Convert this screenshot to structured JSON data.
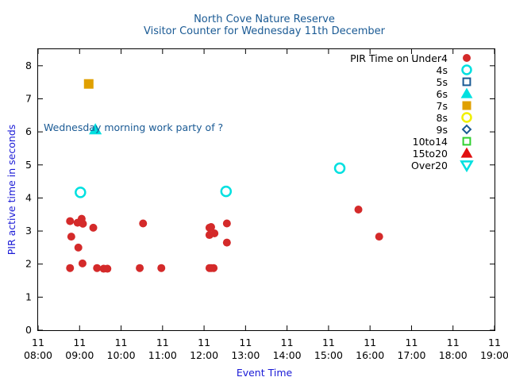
{
  "chart_data": {
    "type": "scatter",
    "title": "North Cove Nature Reserve",
    "subtitle": "Visitor Counter for Wednesday 11th December",
    "xlabel": "Event Time",
    "ylabel": "PIR active time in seconds",
    "xlim": [
      8.0,
      19.0
    ],
    "ylim": [
      0,
      8.5
    ],
    "y_ticks": [
      "0",
      "1",
      "2",
      "3",
      "4",
      "5",
      "6",
      "7",
      "8"
    ],
    "x_ticks": [
      {
        "value": 8,
        "line1": "11",
        "line2": "08:00"
      },
      {
        "value": 9,
        "line1": "11",
        "line2": "09:00"
      },
      {
        "value": 10,
        "line1": "11",
        "line2": "10:00"
      },
      {
        "value": 11,
        "line1": "11",
        "line2": "11:00"
      },
      {
        "value": 12,
        "line1": "11",
        "line2": "12:00"
      },
      {
        "value": 13,
        "line1": "11",
        "line2": "13:00"
      },
      {
        "value": 14,
        "line1": "11",
        "line2": "14:00"
      },
      {
        "value": 15,
        "line1": "11",
        "line2": "15:00"
      },
      {
        "value": 16,
        "line1": "11",
        "line2": "16:00"
      },
      {
        "value": 17,
        "line1": "11",
        "line2": "17:00"
      },
      {
        "value": 18,
        "line1": "11",
        "line2": "18:00"
      },
      {
        "value": 19,
        "line1": "11",
        "line2": "19:00"
      }
    ],
    "grid": false,
    "legend_position": "top-right",
    "legend_title": "PIR Time on ..",
    "series": [
      {
        "name": "Under4",
        "marker": "filled-circle",
        "color": "#d42a2a",
        "points": [
          [
            8.77,
            3.3
          ],
          [
            8.8,
            2.83
          ],
          [
            8.77,
            1.88
          ],
          [
            8.95,
            3.25
          ],
          [
            8.97,
            2.5
          ],
          [
            9.05,
            3.37
          ],
          [
            9.08,
            3.22
          ],
          [
            9.07,
            2.02
          ],
          [
            9.33,
            3.1
          ],
          [
            9.42,
            1.88
          ],
          [
            9.58,
            1.86
          ],
          [
            9.67,
            1.86
          ],
          [
            10.45,
            1.88
          ],
          [
            10.53,
            3.23
          ],
          [
            10.97,
            1.88
          ],
          [
            12.13,
            3.1
          ],
          [
            12.17,
            3.12
          ],
          [
            12.13,
            2.88
          ],
          [
            12.25,
            2.93
          ],
          [
            12.13,
            1.88
          ],
          [
            12.17,
            1.88
          ],
          [
            12.23,
            1.88
          ],
          [
            12.55,
            3.23
          ],
          [
            12.55,
            2.65
          ],
          [
            15.72,
            3.65
          ],
          [
            16.22,
            2.83
          ]
        ]
      },
      {
        "name": "4s",
        "marker": "open-circle",
        "color": "#00e0e0",
        "points": [
          [
            9.02,
            4.17
          ],
          [
            12.53,
            4.2
          ],
          [
            15.27,
            4.9
          ]
        ]
      },
      {
        "name": "5s",
        "marker": "open-square",
        "color": "#1a5a94",
        "points": []
      },
      {
        "name": "6s",
        "marker": "filled-triangle-up",
        "color": "#00e0e0",
        "points": [
          [
            9.38,
            6.07
          ]
        ]
      },
      {
        "name": "7s",
        "marker": "filled-square",
        "color": "#e0a000",
        "points": [
          [
            9.22,
            7.45
          ]
        ]
      },
      {
        "name": "8s",
        "marker": "open-circle",
        "color": "#f0f000",
        "points": []
      },
      {
        "name": "9s",
        "marker": "open-diamond",
        "color": "#1a5a94",
        "points": []
      },
      {
        "name": "10to14",
        "marker": "open-square",
        "color": "#30d030",
        "points": []
      },
      {
        "name": "15to20",
        "marker": "filled-triangle-up",
        "color": "#e01010",
        "points": []
      },
      {
        "name": "Over20",
        "marker": "open-triangle-down",
        "color": "#00e0e0",
        "points": []
      }
    ],
    "annotations": [
      {
        "text": "Wednesday morning work party of ?",
        "x": 8.0,
        "y": 6.0
      }
    ]
  }
}
